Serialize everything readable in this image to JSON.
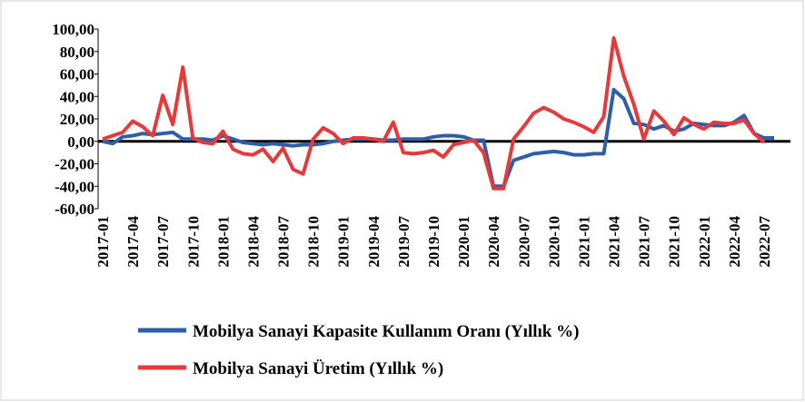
{
  "chart_data": {
    "type": "line",
    "categories": [
      "2017-01",
      null,
      null,
      "2017-04",
      null,
      null,
      "2017-07",
      null,
      null,
      "2017-10",
      null,
      null,
      "2018-01",
      null,
      null,
      "2018-04",
      null,
      null,
      "2018-07",
      null,
      null,
      "2018-10",
      null,
      null,
      "2019-01",
      null,
      null,
      "2019-04",
      null,
      null,
      "2019-07",
      null,
      null,
      "2019-10",
      null,
      null,
      "2020-01",
      null,
      null,
      "2020-04",
      null,
      null,
      "2020-07",
      null,
      null,
      "2020-10",
      null,
      null,
      "2021-01",
      null,
      null,
      "2021-04",
      null,
      null,
      "2021-07",
      null,
      null,
      "2021-10",
      null,
      null,
      "2022-01",
      null,
      null,
      "2022-04",
      null,
      null,
      "2022-07",
      null
    ],
    "series": [
      {
        "name": "Mobilya Sanayi Kapasite Kullanım Oranı  (Yıllık %)",
        "color": "#2e5ea8",
        "values": [
          0,
          -2,
          4,
          5,
          7,
          6,
          7,
          8,
          2,
          2,
          2,
          1,
          5,
          2,
          -1,
          -2,
          -3,
          -2,
          -3,
          -4,
          -3,
          -3,
          -2,
          0,
          1,
          2,
          2,
          2,
          1,
          1,
          2,
          2,
          2,
          4,
          5,
          5,
          4,
          1,
          1,
          -40,
          -40,
          -17,
          -14,
          -11,
          -10,
          -9,
          -10,
          -12,
          -12,
          -11,
          -11,
          46,
          38,
          16,
          15,
          11,
          14,
          9,
          11,
          16,
          15,
          14,
          14,
          17,
          23,
          7,
          3,
          3
        ]
      },
      {
        "name": "Mobilya Sanayi Üretim (Yıllık %)",
        "color": "#e8393a",
        "values": [
          2,
          5,
          8,
          18,
          13,
          5,
          41,
          15,
          66,
          3,
          -1,
          -2,
          9,
          -7,
          -11,
          -12,
          -7,
          -18,
          -6,
          -25,
          -29,
          2,
          12,
          7,
          -2,
          3,
          3,
          2,
          0,
          17,
          -10,
          -11,
          -10,
          -8,
          -14,
          -3,
          -1,
          1,
          -10,
          -42,
          -42,
          2,
          13,
          25,
          30,
          26,
          20,
          17,
          13,
          8,
          22,
          92,
          58,
          33,
          2,
          27,
          18,
          6,
          21,
          15,
          11,
          17,
          16,
          16,
          19,
          7,
          -1,
          null
        ]
      }
    ],
    "ylim": [
      -60,
      100
    ],
    "yticks": [
      {
        "value": -60,
        "label": "-60,00"
      },
      {
        "value": -40,
        "label": "-40,00"
      },
      {
        "value": -20,
        "label": "-20,00"
      },
      {
        "value": 0,
        "label": "0,00"
      },
      {
        "value": 20,
        "label": "20,00"
      },
      {
        "value": 40,
        "label": "40,00"
      },
      {
        "value": 60,
        "label": "60,00"
      },
      {
        "value": 80,
        "label": "80,00"
      },
      {
        "value": 100,
        "label": "100,00"
      }
    ],
    "grid": false
  }
}
